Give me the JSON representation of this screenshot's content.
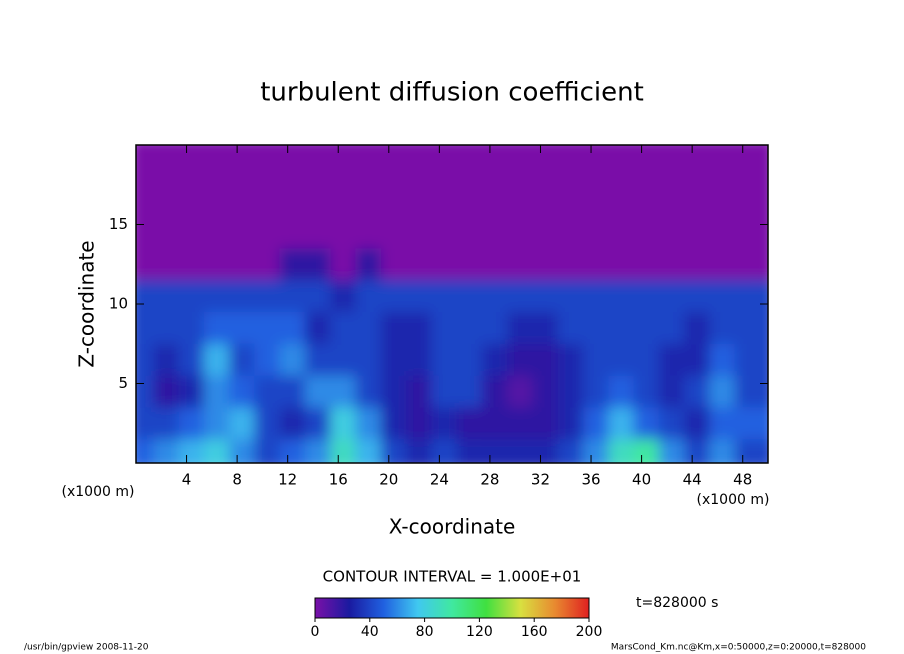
{
  "chart_data": {
    "type": "heatmap",
    "title": "turbulent diffusion coefficient",
    "xlabel": "X-coordinate",
    "ylabel": "Z-coordinate",
    "xunit": "(x1000 m)",
    "yunit": "(x1000 m)",
    "xlim": [
      0,
      50
    ],
    "ylim": [
      0,
      20
    ],
    "xticks": [
      4,
      8,
      12,
      16,
      20,
      24,
      28,
      32,
      36,
      40,
      44,
      48
    ],
    "yticks": [
      5,
      10,
      15
    ],
    "x": [
      1,
      3,
      5,
      7,
      9,
      11,
      13,
      15,
      17,
      19,
      21,
      23,
      25,
      27,
      29,
      31,
      33,
      35,
      37,
      39,
      41,
      43,
      45,
      47,
      49
    ],
    "y": [
      1,
      3,
      5,
      7,
      9,
      11,
      13,
      15,
      17,
      19
    ],
    "z": [
      [
        50,
        60,
        70,
        80,
        60,
        40,
        50,
        60,
        90,
        70,
        40,
        30,
        40,
        30,
        30,
        30,
        30,
        40,
        60,
        90,
        100,
        60,
        40,
        60,
        40
      ],
      [
        40,
        40,
        50,
        60,
        70,
        40,
        30,
        40,
        80,
        60,
        30,
        20,
        30,
        20,
        20,
        20,
        20,
        30,
        50,
        70,
        50,
        40,
        30,
        50,
        50
      ],
      [
        40,
        20,
        30,
        60,
        50,
        40,
        40,
        60,
        60,
        40,
        30,
        20,
        40,
        40,
        20,
        10,
        20,
        30,
        40,
        50,
        40,
        30,
        40,
        60,
        40
      ],
      [
        40,
        30,
        40,
        70,
        40,
        50,
        60,
        40,
        40,
        40,
        30,
        30,
        40,
        40,
        30,
        20,
        20,
        30,
        40,
        40,
        40,
        30,
        30,
        50,
        40
      ],
      [
        40,
        40,
        40,
        50,
        50,
        50,
        50,
        30,
        40,
        40,
        30,
        30,
        40,
        40,
        40,
        30,
        30,
        40,
        40,
        40,
        40,
        40,
        30,
        40,
        40
      ],
      [
        40,
        40,
        40,
        40,
        40,
        40,
        40,
        40,
        30,
        40,
        40,
        40,
        40,
        40,
        40,
        40,
        40,
        40,
        40,
        40,
        40,
        40,
        40,
        40,
        40
      ],
      [
        0,
        0,
        0,
        0,
        0,
        0,
        20,
        20,
        0,
        20,
        0,
        0,
        0,
        0,
        0,
        0,
        0,
        0,
        0,
        0,
        0,
        0,
        0,
        0,
        0
      ],
      [
        0,
        0,
        0,
        0,
        0,
        0,
        0,
        0,
        0,
        0,
        0,
        0,
        0,
        0,
        0,
        0,
        0,
        0,
        0,
        0,
        0,
        0,
        0,
        0,
        0
      ],
      [
        0,
        0,
        0,
        0,
        0,
        0,
        0,
        0,
        0,
        0,
        0,
        0,
        0,
        0,
        0,
        0,
        0,
        0,
        0,
        0,
        0,
        0,
        0,
        0,
        0
      ],
      [
        0,
        0,
        0,
        0,
        0,
        0,
        0,
        0,
        0,
        0,
        0,
        0,
        0,
        0,
        0,
        0,
        0,
        0,
        0,
        0,
        0,
        0,
        0,
        0,
        0
      ]
    ],
    "colorscale": [
      "#7a10a8",
      "#1a1aa0",
      "#2060e0",
      "#40c8f0",
      "#40e8a0",
      "#40e040",
      "#d8e040",
      "#e88a30",
      "#e02020"
    ],
    "clim": [
      0,
      200
    ],
    "cticks": [
      0,
      40,
      80,
      120,
      160,
      200
    ],
    "contour_interval": "CONTOUR INTERVAL = 1.000E+01",
    "time_label": "t=828000 s",
    "footer_left": "/usr/bin/gpview  2008-11-20",
    "footer_right": "MarsCond_Km.nc@Km,x=0:50000,z=0:20000,t=828000"
  }
}
